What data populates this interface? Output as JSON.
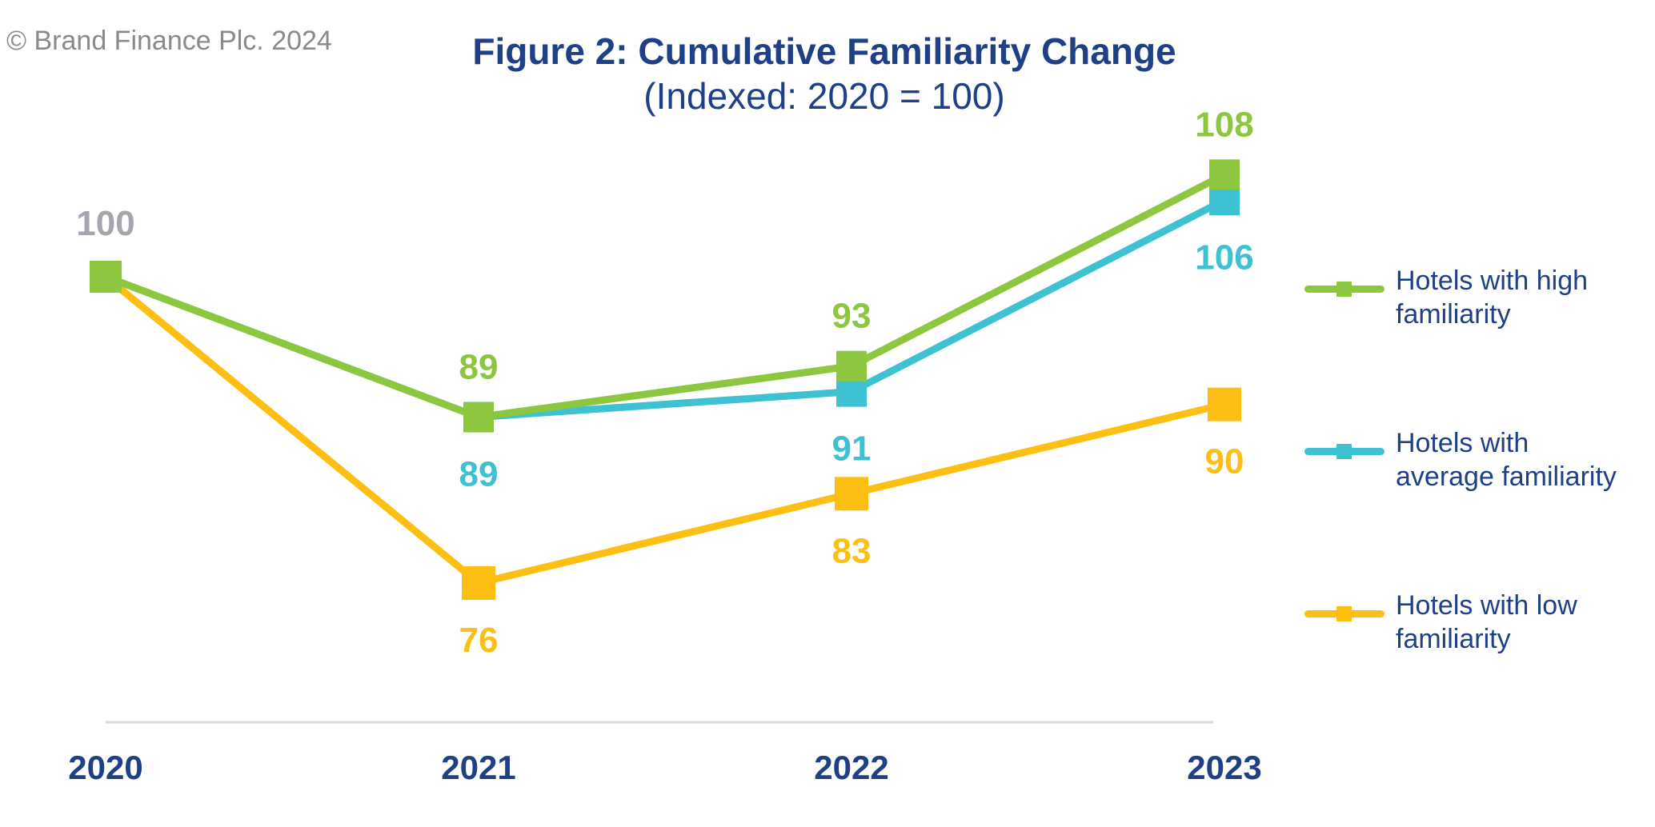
{
  "copyright": "© Brand Finance Plc. 2024",
  "colors": {
    "high": "#8dc63f",
    "average": "#3fc1d4",
    "low": "#fdbf13",
    "start": "#a6a4ac",
    "axis_text": "#1f3f86"
  },
  "chart_data": {
    "type": "line",
    "title": "Figure 2: Cumulative Familiarity Change",
    "subtitle": "(Indexed: 2020 = 100)",
    "xlabel": "",
    "ylabel": "",
    "categories": [
      "2020",
      "2021",
      "2022",
      "2023"
    ],
    "ylim": [
      60,
      115
    ],
    "grid": false,
    "legend_position": "right",
    "start_label": "100",
    "series": [
      {
        "name": "Hotels with high familiarity",
        "values": [
          100,
          89,
          93,
          108
        ],
        "labels": [
          "",
          "89",
          "93",
          "108"
        ],
        "label_position": "above"
      },
      {
        "name": "Hotels with average familiarity",
        "values": [
          100,
          89,
          91,
          106
        ],
        "labels": [
          "",
          "89",
          "91",
          "106"
        ],
        "label_position": "below"
      },
      {
        "name": "Hotels with low familiarity",
        "values": [
          100,
          76,
          83,
          90
        ],
        "labels": [
          "",
          "76",
          "83",
          "90"
        ],
        "label_position": "below"
      }
    ]
  },
  "legend": {
    "items": [
      {
        "label_line1": "Hotels with high",
        "label_line2": "familiarity"
      },
      {
        "label_line1": "Hotels with",
        "label_line2": "average familiarity"
      },
      {
        "label_line1": "Hotels with low",
        "label_line2": "familiarity"
      }
    ]
  }
}
